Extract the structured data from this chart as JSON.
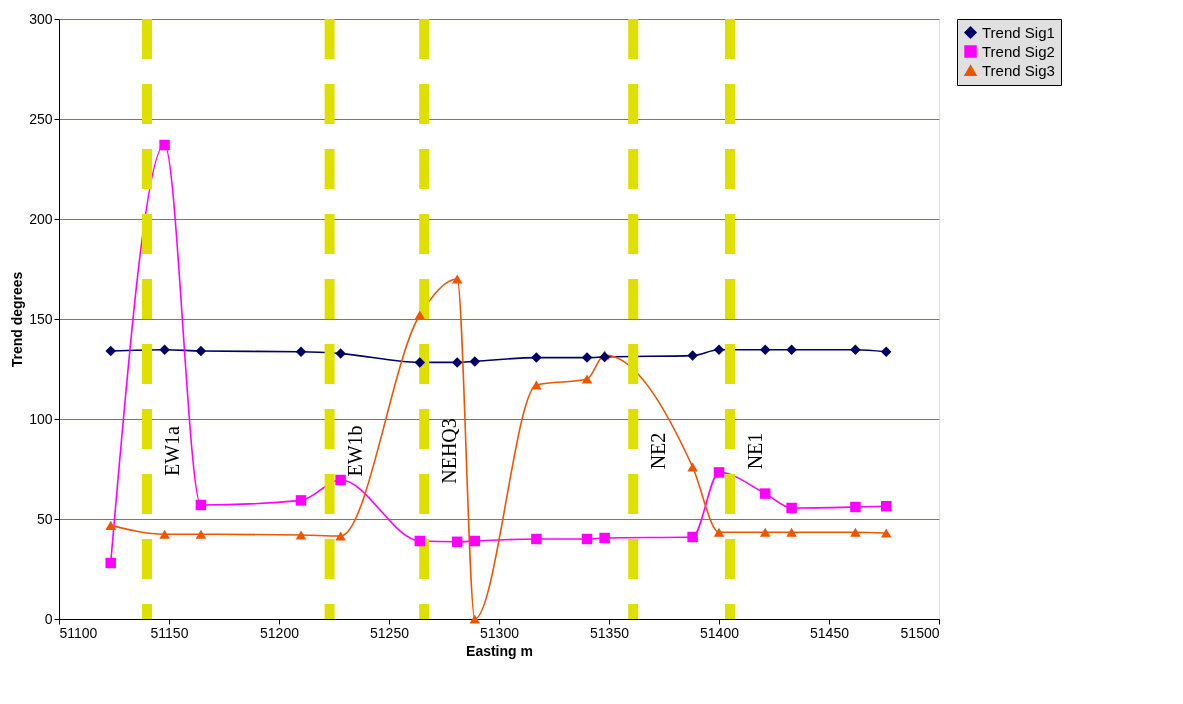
{
  "chart_data": {
    "type": "line",
    "xlabel": "Easting   m",
    "ylabel": "Trend  degrees",
    "x": [
      51123.5,
      51148,
      51164.5,
      51210,
      51228,
      51264,
      51281,
      51289,
      51317,
      51340,
      51348,
      51388,
      51400,
      51421,
      51433,
      51462,
      51476
    ],
    "series": [
      {
        "name": "Trend Sig1",
        "color": "#000066",
        "marker": "diamond",
        "values": [
          134,
          134.6,
          134,
          133.6,
          132.7,
          128.3,
          128.3,
          128.8,
          130.7,
          130.7,
          131,
          131.7,
          134.6,
          134.6,
          134.6,
          134.6,
          133.6
        ]
      },
      {
        "name": "Trend Sig2",
        "color": "#ff00ff",
        "marker": "square",
        "values": [
          28,
          237,
          57,
          59.3,
          69.5,
          39,
          38.6,
          39,
          40,
          40,
          40.5,
          41,
          73.3,
          62.7,
          55.5,
          56,
          56.4
        ]
      },
      {
        "name": "Trend Sig3",
        "color": "#ee5500",
        "marker": "triangle",
        "values": [
          46.8,
          42.4,
          42.4,
          42,
          41.5,
          152,
          170,
          0,
          117,
          120,
          132,
          76,
          43.4,
          43.4,
          43.4,
          43.4,
          43
        ]
      }
    ],
    "ref_lines": [
      {
        "axis": "x",
        "value": 51140,
        "label": "EW1a",
        "color": "#e0e000",
        "line_style": "dashed"
      },
      {
        "axis": "x",
        "value": 51223,
        "label": "EW1b",
        "color": "#e0e000",
        "line_style": "dashed"
      },
      {
        "axis": "x",
        "value": 51266,
        "label": "NEHQ3",
        "color": "#e0e000",
        "line_style": "dashed"
      },
      {
        "axis": "x",
        "value": 51361,
        "label": "NE2",
        "color": "#e0e000",
        "line_style": "dashed"
      },
      {
        "axis": "x",
        "value": 51405,
        "label": "NE1",
        "color": "#e0e000",
        "line_style": "dashed"
      }
    ],
    "xlim": [
      51100,
      51500
    ],
    "xticks": [
      51100,
      51150,
      51200,
      51250,
      51300,
      51350,
      51400,
      51450,
      51500
    ],
    "ylim": [
      0,
      300
    ],
    "yticks": [
      0,
      50,
      100,
      150,
      200,
      250,
      300
    ],
    "grid": "y",
    "legend": "right",
    "line_style": "solid"
  }
}
